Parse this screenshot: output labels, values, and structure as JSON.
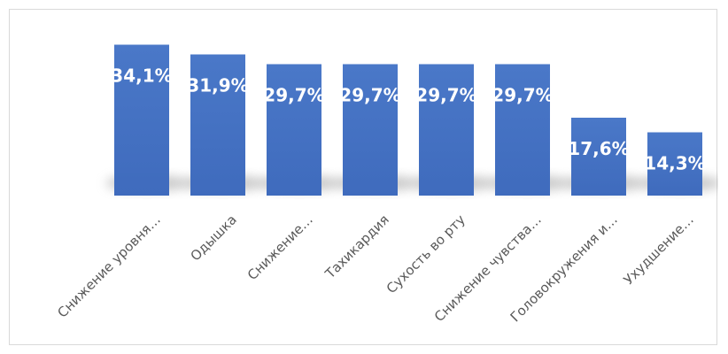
{
  "chart_data": {
    "type": "bar",
    "title": "",
    "xlabel": "",
    "ylabel": "",
    "ylim": [
      0,
      36
    ],
    "grid": false,
    "legend": "none",
    "unit": "%",
    "categories": [
      "Снижение уровня…",
      "Одышка",
      "Снижение…",
      "Тахикардия",
      "Сухость во рту",
      "Снижение чувства…",
      "Головокружения и…",
      "Ухудшение…"
    ],
    "values": [
      34.1,
      31.9,
      29.7,
      29.7,
      29.7,
      29.7,
      17.6,
      14.3
    ],
    "data_labels": [
      "34,1%",
      "31,9%",
      "29,7%",
      "29,7%",
      "29,7%",
      "29,7%",
      "17,6%",
      "14,3%"
    ],
    "colors": {
      "bar": "#4472c4",
      "bar_light": "#4a78c8",
      "label": "#ffffff",
      "axis_text": "#595959",
      "border": "#d9d9d9"
    }
  }
}
